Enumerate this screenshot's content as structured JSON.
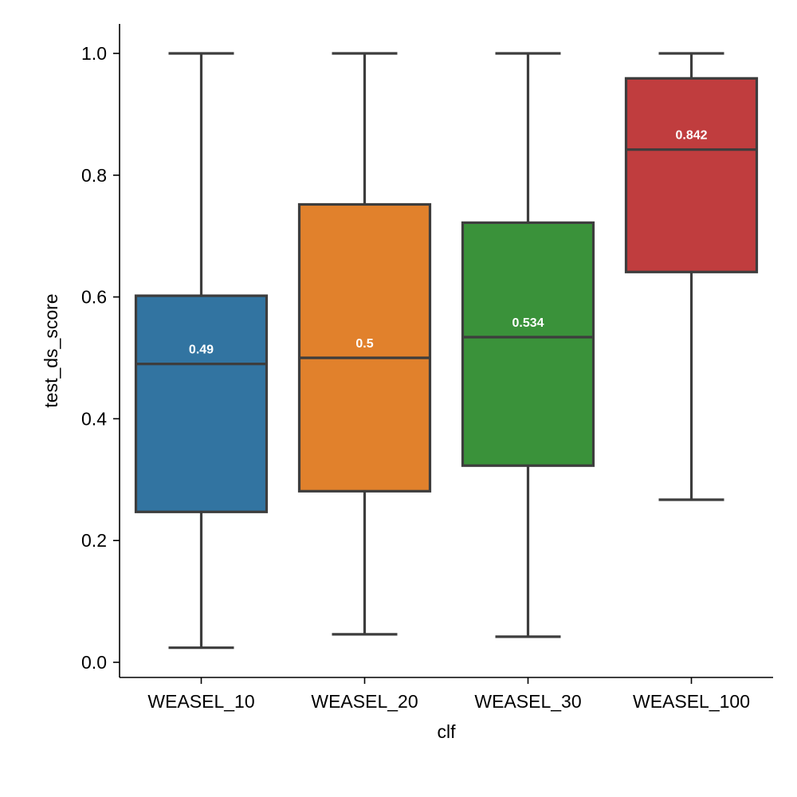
{
  "chart_data": {
    "type": "box",
    "xlabel": "clf",
    "ylabel": "test_ds_score",
    "ylim": [
      -0.025,
      1.05
    ],
    "yticks": [
      0.0,
      0.2,
      0.4,
      0.6,
      0.8,
      1.0
    ],
    "ytick_labels": [
      "0.0",
      "0.2",
      "0.4",
      "0.6",
      "0.8",
      "1.0"
    ],
    "grid": false,
    "categories": [
      "WEASEL_10",
      "WEASEL_20",
      "WEASEL_30",
      "WEASEL_100"
    ],
    "boxes": [
      {
        "category": "WEASEL_10",
        "whislo": 0.024,
        "q1": 0.247,
        "median": 0.49,
        "q3": 0.602,
        "whishi": 1.0,
        "median_label": "0.49",
        "color": "#3274a1"
      },
      {
        "category": "WEASEL_20",
        "whislo": 0.046,
        "q1": 0.281,
        "median": 0.5,
        "q3": 0.752,
        "whishi": 1.0,
        "median_label": "0.5",
        "color": "#e1812c"
      },
      {
        "category": "WEASEL_30",
        "whislo": 0.042,
        "q1": 0.323,
        "median": 0.534,
        "q3": 0.722,
        "whishi": 1.0,
        "median_label": "0.534",
        "color": "#3a923a"
      },
      {
        "category": "WEASEL_100",
        "whislo": 0.267,
        "q1": 0.641,
        "median": 0.842,
        "q3": 0.959,
        "whishi": 1.0,
        "median_label": "0.842",
        "color": "#c03d3e"
      }
    ]
  }
}
